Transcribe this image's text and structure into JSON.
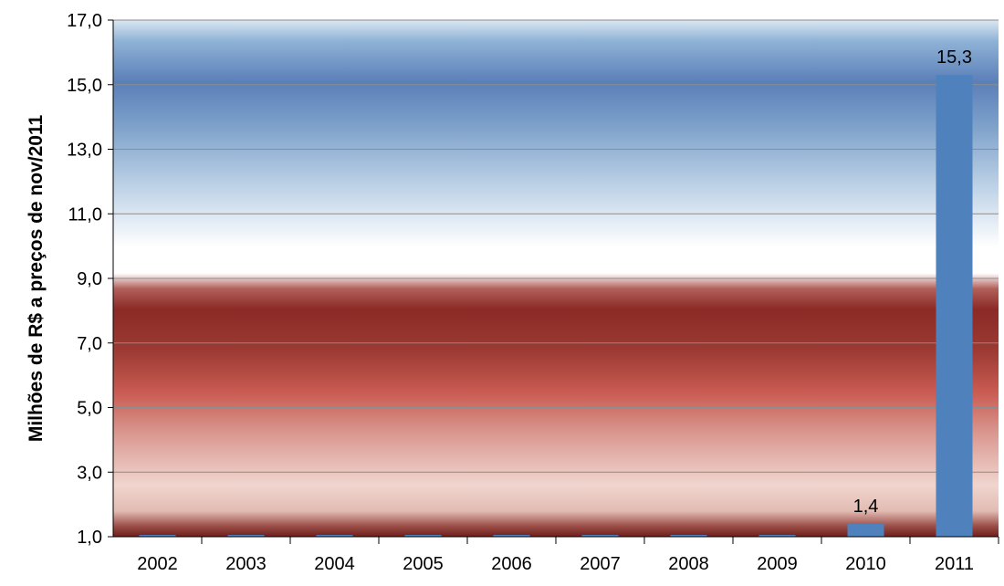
{
  "chart_data": {
    "type": "bar",
    "title": "",
    "xlabel": "",
    "ylabel": "Milhões de R$ a preços de nov/2011",
    "categories": [
      "2002",
      "2003",
      "2004",
      "2005",
      "2006",
      "2007",
      "2008",
      "2009",
      "2010",
      "2011"
    ],
    "values": [
      1.0,
      1.0,
      1.0,
      1.0,
      1.0,
      1.0,
      1.0,
      1.0,
      1.4,
      15.3
    ],
    "data_labels": [
      "",
      "",
      "",
      "",
      "",
      "",
      "",
      "",
      "1,4",
      "15,3"
    ],
    "ylim": [
      1.0,
      17.0
    ],
    "yticks": [
      1.0,
      3.0,
      5.0,
      7.0,
      9.0,
      11.0,
      13.0,
      15.0,
      17.0
    ],
    "ytick_labels": [
      "1,0",
      "3,0",
      "5,0",
      "7,0",
      "9,0",
      "11,0",
      "13,0",
      "15,0",
      "17,0"
    ],
    "grid": true,
    "legend": "none",
    "colors": {
      "bar": "#4f81bd",
      "blue_band": "#5b7fb8",
      "red_band": "#8b2a26",
      "grid": "#8c8c8c"
    }
  }
}
